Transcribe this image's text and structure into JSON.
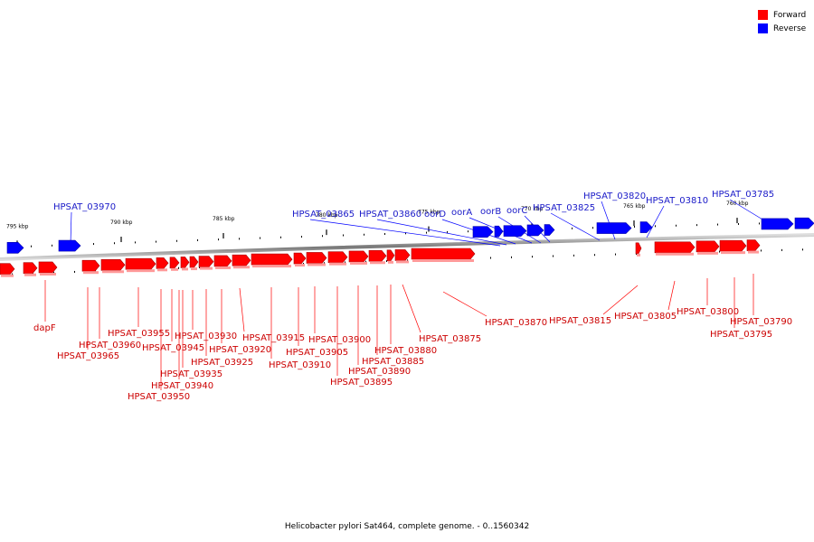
{
  "legend": {
    "forward_label": "Forward",
    "reverse_label": "Reverse",
    "forward_color": "#ff0000",
    "reverse_color": "#0000ff"
  },
  "footer": {
    "caption": "Helicobacter pylori Sat464, complete genome. - 0..1560342"
  },
  "colors": {
    "forward": "#ff0000",
    "reverse": "#0000ff",
    "forward_label": "#cc0000",
    "reverse_label": "#1a1ac8",
    "backbone": "#888888"
  },
  "ticks": [
    "795 kbp",
    "790 kbp",
    "785 kbp",
    "780 kbp",
    "775 kbp",
    "770 kbp",
    "765 kbp",
    "760 kbp"
  ],
  "reverse_genes": [
    "HPSAT_03970",
    "HPSAT_03865",
    "HPSAT_03860",
    "oorD",
    "oorA",
    "oorB",
    "oorC",
    "HPSAT_03825",
    "HPSAT_03820",
    "HPSAT_03810",
    "HPSAT_03785"
  ],
  "forward_genes": [
    "dapF",
    "HPSAT_03965",
    "HPSAT_03960",
    "HPSAT_03955",
    "HPSAT_03950",
    "HPSAT_03945",
    "HPSAT_03940",
    "HPSAT_03935",
    "HPSAT_03930",
    "HPSAT_03925",
    "HPSAT_03920",
    "HPSAT_03915",
    "HPSAT_03910",
    "HPSAT_03905",
    "HPSAT_03900",
    "HPSAT_03895",
    "HPSAT_03890",
    "HPSAT_03885",
    "HPSAT_03880",
    "HPSAT_03875",
    "HPSAT_03870",
    "HPSAT_03815",
    "HPSAT_03805",
    "HPSAT_03800",
    "HPSAT_03795",
    "HPSAT_03790"
  ]
}
